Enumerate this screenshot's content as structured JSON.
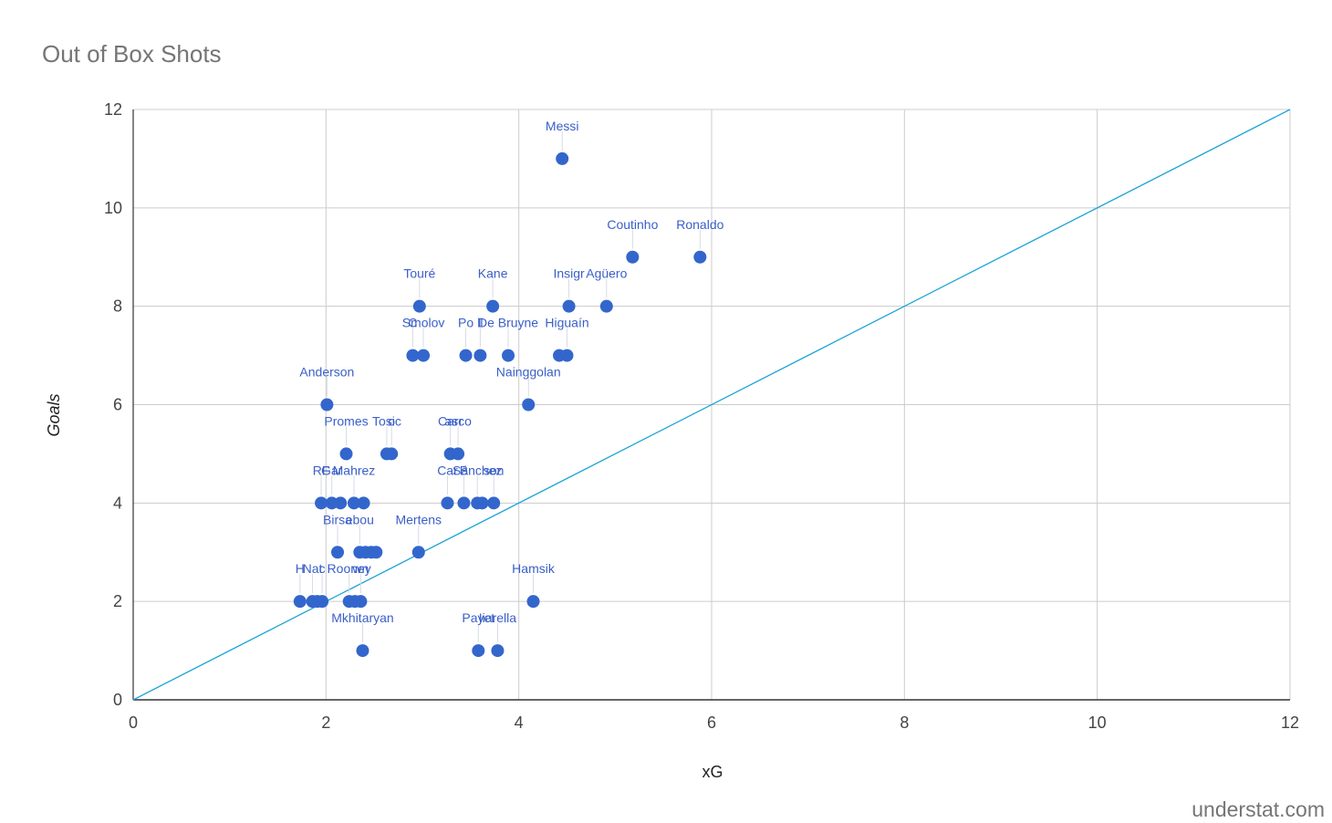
{
  "source": "understat.com",
  "chart_data": {
    "type": "scatter",
    "title": "Out of Box Shots",
    "xlabel": "xG",
    "ylabel": "Goals",
    "xlim": [
      0,
      12
    ],
    "ylim": [
      0,
      12
    ],
    "x_ticks": [
      0,
      2,
      4,
      6,
      8,
      10,
      12
    ],
    "y_ticks": [
      0,
      2,
      4,
      6,
      8,
      10,
      12
    ],
    "grid": true,
    "legend": "none",
    "reference_line": {
      "from": [
        0,
        0
      ],
      "to": [
        12,
        12
      ]
    },
    "colors": {
      "points": "#3366cc",
      "labels": "#3a5fc8",
      "reference_line": "#1aa3d6",
      "grid": "#cccccc",
      "axis": "#333333"
    },
    "points": [
      {
        "label": "Messi",
        "x": 4.45,
        "y": 11
      },
      {
        "label": "Coutinho",
        "x": 5.18,
        "y": 9
      },
      {
        "label": "Ronaldo",
        "x": 5.88,
        "y": 9
      },
      {
        "label": "Touré",
        "x": 2.97,
        "y": 8
      },
      {
        "label": "Kane",
        "x": 3.73,
        "y": 8
      },
      {
        "label": "Insigr",
        "x": 4.52,
        "y": 8
      },
      {
        "label": "Agüero",
        "x": 4.91,
        "y": 8
      },
      {
        "label": "C",
        "x": 2.9,
        "y": 7
      },
      {
        "label": "Smolov",
        "x": 3.01,
        "y": 7
      },
      {
        "label": "Po",
        "x": 3.45,
        "y": 7
      },
      {
        "label": "ll",
        "x": 3.6,
        "y": 7
      },
      {
        "label": "De Bruyne",
        "x": 3.89,
        "y": 7
      },
      {
        "label": "",
        "x": 4.42,
        "y": 7
      },
      {
        "label": "Higuaín",
        "x": 4.5,
        "y": 7
      },
      {
        "label": "Nainggolan",
        "x": 4.1,
        "y": 6
      },
      {
        "label": "Anderson",
        "x": 2.01,
        "y": 6
      },
      {
        "label": "Promes",
        "x": 2.21,
        "y": 5
      },
      {
        "label": "Tosic",
        "x": 2.63,
        "y": 5
      },
      {
        "label": "o",
        "x": 2.68,
        "y": 5
      },
      {
        "label": "Carr",
        "x": 3.29,
        "y": 5
      },
      {
        "label": "asco",
        "x": 3.37,
        "y": 5
      },
      {
        "label": "RF",
        "x": 1.95,
        "y": 4
      },
      {
        "label": "Gar",
        "x": 2.06,
        "y": 4
      },
      {
        "label": "",
        "x": 2.15,
        "y": 4
      },
      {
        "label": "Mahrez",
        "x": 2.29,
        "y": 4
      },
      {
        "label": "",
        "x": 2.39,
        "y": 4
      },
      {
        "label": "Car",
        "x": 3.26,
        "y": 4
      },
      {
        "label": "B",
        "x": 3.43,
        "y": 4
      },
      {
        "label": "Sánchez",
        "x": 3.57,
        "y": 4
      },
      {
        "label": "",
        "x": 3.62,
        "y": 4
      },
      {
        "label": "son",
        "x": 3.74,
        "y": 4
      },
      {
        "label": "Birsa",
        "x": 2.12,
        "y": 3
      },
      {
        "label": "ebou",
        "x": 2.35,
        "y": 3
      },
      {
        "label": "",
        "x": 2.41,
        "y": 3
      },
      {
        "label": "",
        "x": 2.47,
        "y": 3
      },
      {
        "label": "",
        "x": 2.52,
        "y": 3
      },
      {
        "label": "Mertens",
        "x": 2.96,
        "y": 3
      },
      {
        "label": "H",
        "x": 1.73,
        "y": 2
      },
      {
        "label": "Nat",
        "x": 1.86,
        "y": 2
      },
      {
        "label": "",
        "x": 1.91,
        "y": 2
      },
      {
        "label": "c",
        "x": 1.96,
        "y": 2
      },
      {
        "label": "Rooney",
        "x": 2.24,
        "y": 2
      },
      {
        "label": "",
        "x": 2.3,
        "y": 2
      },
      {
        "label": "wn",
        "x": 2.36,
        "y": 2
      },
      {
        "label": "Hamsik",
        "x": 4.15,
        "y": 2
      },
      {
        "label": "Mkhitaryan",
        "x": 2.38,
        "y": 1
      },
      {
        "label": "Payet",
        "x": 3.58,
        "y": 1
      },
      {
        "label": "Iiarella",
        "x": 3.78,
        "y": 1
      }
    ]
  }
}
